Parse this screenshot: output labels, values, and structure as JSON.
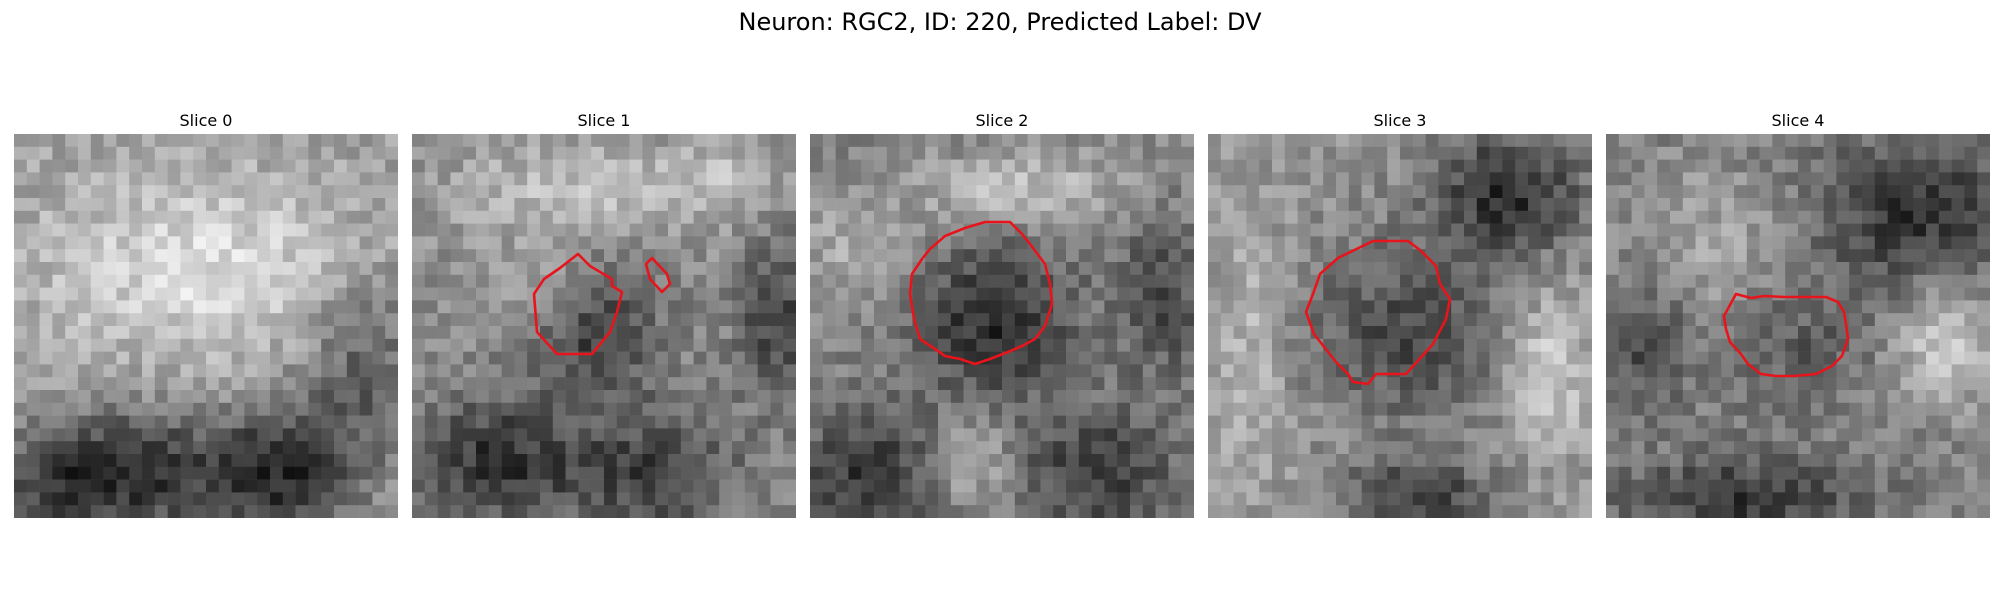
{
  "figure": {
    "title": "Neuron: RGC2, ID: 220, Predicted Label: DV",
    "outline_color": "#e8141b"
  },
  "panels": [
    {
      "title": "Slice 0",
      "has_outline": false
    },
    {
      "title": "Slice 1",
      "has_outline": true
    },
    {
      "title": "Slice 2",
      "has_outline": true
    },
    {
      "title": "Slice 3",
      "has_outline": true
    },
    {
      "title": "Slice 4",
      "has_outline": true
    }
  ]
}
